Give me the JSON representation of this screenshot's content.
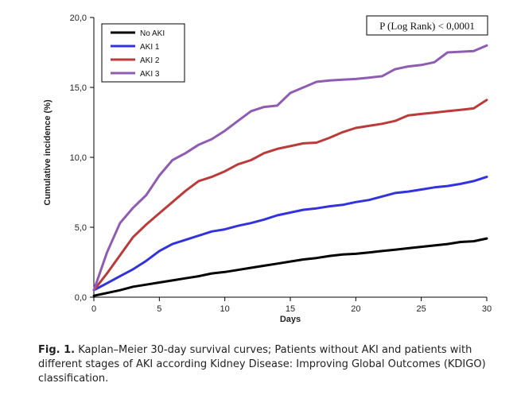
{
  "chart_data": {
    "type": "line",
    "xlabel": "Days",
    "ylabel": "Cumulative incidence (%)",
    "xlim": [
      0,
      30
    ],
    "ylim": [
      0,
      20
    ],
    "xticks": [
      0,
      5,
      10,
      15,
      20,
      25,
      30
    ],
    "xtick_labels": [
      "0",
      "5",
      "10",
      "15",
      "20",
      "25",
      "30"
    ],
    "yticks": [
      0,
      5,
      10,
      15,
      20
    ],
    "ytick_labels": [
      "0,0",
      "5,0",
      "10,0",
      "15,0",
      "20,0"
    ],
    "grid": false,
    "legend_position": "top-left",
    "annotation": "P (Log Rank) < 0,0001",
    "series": [
      {
        "name": "No AKI",
        "color": "#000000",
        "points": [
          [
            0,
            0.1
          ],
          [
            1,
            0.3
          ],
          [
            2,
            0.5
          ],
          [
            3,
            0.75
          ],
          [
            4,
            0.9
          ],
          [
            5,
            1.05
          ],
          [
            6,
            1.2
          ],
          [
            7,
            1.35
          ],
          [
            8,
            1.5
          ],
          [
            9,
            1.7
          ],
          [
            10,
            1.8
          ],
          [
            11,
            1.95
          ],
          [
            12,
            2.1
          ],
          [
            13,
            2.25
          ],
          [
            14,
            2.4
          ],
          [
            15,
            2.55
          ],
          [
            16,
            2.7
          ],
          [
            17,
            2.8
          ],
          [
            18,
            2.95
          ],
          [
            19,
            3.05
          ],
          [
            20,
            3.1
          ],
          [
            21,
            3.2
          ],
          [
            22,
            3.3
          ],
          [
            23,
            3.4
          ],
          [
            24,
            3.5
          ],
          [
            25,
            3.6
          ],
          [
            26,
            3.7
          ],
          [
            27,
            3.8
          ],
          [
            28,
            3.95
          ],
          [
            29,
            4.0
          ],
          [
            30,
            4.2
          ]
        ]
      },
      {
        "name": "AKI 1",
        "color": "#3333dd",
        "points": [
          [
            0,
            0.5
          ],
          [
            1,
            1.0
          ],
          [
            2,
            1.5
          ],
          [
            3,
            2.0
          ],
          [
            4,
            2.6
          ],
          [
            5,
            3.3
          ],
          [
            6,
            3.8
          ],
          [
            7,
            4.1
          ],
          [
            8,
            4.4
          ],
          [
            9,
            4.7
          ],
          [
            10,
            4.85
          ],
          [
            11,
            5.1
          ],
          [
            12,
            5.3
          ],
          [
            13,
            5.55
          ],
          [
            14,
            5.85
          ],
          [
            15,
            6.05
          ],
          [
            16,
            6.25
          ],
          [
            17,
            6.35
          ],
          [
            18,
            6.5
          ],
          [
            19,
            6.6
          ],
          [
            20,
            6.8
          ],
          [
            21,
            6.95
          ],
          [
            22,
            7.2
          ],
          [
            23,
            7.45
          ],
          [
            24,
            7.55
          ],
          [
            25,
            7.7
          ],
          [
            26,
            7.85
          ],
          [
            27,
            7.95
          ],
          [
            28,
            8.1
          ],
          [
            29,
            8.3
          ],
          [
            30,
            8.6
          ]
        ]
      },
      {
        "name": "AKI 2",
        "color": "#bb3b3b",
        "points": [
          [
            0,
            0.5
          ],
          [
            1,
            1.7
          ],
          [
            2,
            3.0
          ],
          [
            3,
            4.3
          ],
          [
            4,
            5.2
          ],
          [
            5,
            6.0
          ],
          [
            6,
            6.8
          ],
          [
            7,
            7.6
          ],
          [
            8,
            8.3
          ],
          [
            9,
            8.6
          ],
          [
            10,
            9.0
          ],
          [
            11,
            9.5
          ],
          [
            12,
            9.8
          ],
          [
            13,
            10.3
          ],
          [
            14,
            10.6
          ],
          [
            15,
            10.8
          ],
          [
            16,
            11.0
          ],
          [
            17,
            11.05
          ],
          [
            18,
            11.4
          ],
          [
            19,
            11.8
          ],
          [
            20,
            12.1
          ],
          [
            21,
            12.25
          ],
          [
            22,
            12.4
          ],
          [
            23,
            12.6
          ],
          [
            24,
            13.0
          ],
          [
            25,
            13.1
          ],
          [
            26,
            13.2
          ],
          [
            27,
            13.3
          ],
          [
            28,
            13.4
          ],
          [
            29,
            13.5
          ],
          [
            30,
            14.1
          ]
        ]
      },
      {
        "name": "AKI 3",
        "color": "#8e5cb0",
        "points": [
          [
            0,
            0.5
          ],
          [
            1,
            3.2
          ],
          [
            2,
            5.3
          ],
          [
            3,
            6.4
          ],
          [
            4,
            7.3
          ],
          [
            5,
            8.7
          ],
          [
            6,
            9.8
          ],
          [
            7,
            10.3
          ],
          [
            8,
            10.9
          ],
          [
            9,
            11.3
          ],
          [
            10,
            11.9
          ],
          [
            11,
            12.6
          ],
          [
            12,
            13.3
          ],
          [
            13,
            13.6
          ],
          [
            14,
            13.7
          ],
          [
            15,
            14.6
          ],
          [
            16,
            15.0
          ],
          [
            17,
            15.4
          ],
          [
            18,
            15.5
          ],
          [
            19,
            15.55
          ],
          [
            20,
            15.6
          ],
          [
            21,
            15.7
          ],
          [
            22,
            15.8
          ],
          [
            23,
            16.3
          ],
          [
            24,
            16.5
          ],
          [
            25,
            16.6
          ],
          [
            26,
            16.8
          ],
          [
            27,
            17.5
          ],
          [
            28,
            17.55
          ],
          [
            29,
            17.6
          ],
          [
            30,
            18.0
          ]
        ]
      }
    ]
  },
  "caption": {
    "label": "Fig. 1.",
    "text": " Kaplan–Meier 30-day survival curves; Patients without AKI and patients with different stages of AKI according Kidney Disease: Improving Global Outcomes (KDIGO) classification."
  }
}
